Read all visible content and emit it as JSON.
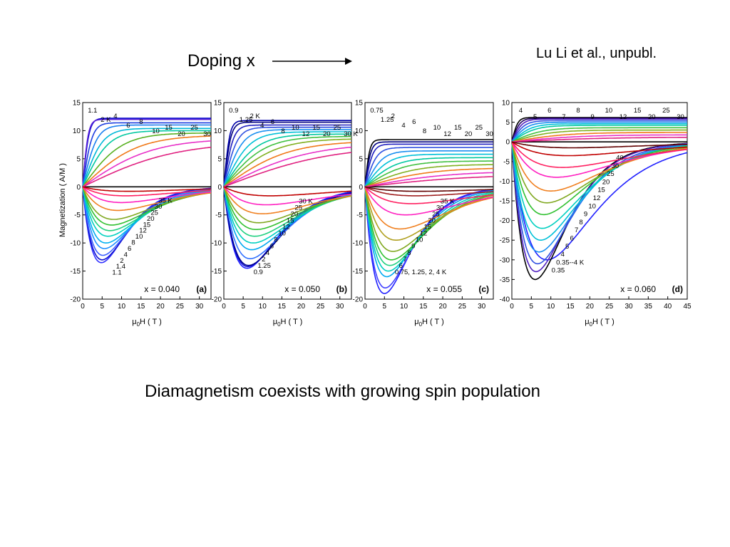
{
  "slide": {
    "doping_label": "Doping x",
    "citation": "Lu Li et al., unpubl.",
    "caption": "Diamagnetism coexists with growing spin population"
  },
  "shared": {
    "ylabel": "Magnetization ( A/M )",
    "xlabel_prefix": "μ",
    "xlabel_sub": "0",
    "xlabel_suffix": "H ( T )"
  },
  "chart_data": [
    {
      "type": "line",
      "panel_label": "(a)",
      "composition": "x = 0.040",
      "xlabel": "μ0H ( T )",
      "ylabel": "Magnetization ( A/M )",
      "xlim": [
        0,
        33
      ],
      "ylim": [
        -20,
        15
      ],
      "xticks": [
        "0",
        "5",
        "10",
        "15",
        "20",
        "25",
        "30"
      ],
      "yticks": [
        "15",
        "10",
        "5",
        "0",
        "-5",
        "-10",
        "-15",
        "-20"
      ],
      "upper_labels": [
        "1.1",
        "2 K",
        "4",
        "6",
        "8",
        "10",
        "15",
        "20",
        "25",
        "30"
      ],
      "lower_labels": [
        "35 K",
        "30",
        "25",
        "20",
        "15",
        "12",
        "10",
        "8",
        "6",
        "4",
        "2",
        "1.4",
        "1.1"
      ],
      "series_upper": [
        {
          "T": "1.1",
          "color": "#0000cc",
          "sat": 12.2,
          "k": 1.6
        },
        {
          "T": "2",
          "color": "#5a20d8",
          "sat": 12.0,
          "k": 1.4
        },
        {
          "T": "4",
          "color": "#1f3fe0",
          "sat": 11.4,
          "k": 2.4
        },
        {
          "T": "6",
          "color": "#1a7ff0",
          "sat": 11.0,
          "k": 3.6
        },
        {
          "T": "8",
          "color": "#00b8d8",
          "sat": 10.4,
          "k": 5.0
        },
        {
          "T": "10",
          "color": "#00c8a0",
          "sat": 10.0,
          "k": 6.6
        },
        {
          "T": "15",
          "color": "#58b020",
          "sat": 9.6,
          "k": 10.0
        },
        {
          "T": "20",
          "color": "#f07818",
          "sat": 9.2,
          "k": 14.0
        },
        {
          "T": "25",
          "color": "#e830c8",
          "sat": 8.6,
          "k": 18.0
        },
        {
          "T": "30",
          "color": "#e02080",
          "sat": 8.0,
          "k": 24.0
        }
      ],
      "series_lower": [
        {
          "T": "1.1",
          "color": "#3030ff",
          "depth": -13.5,
          "hmin": 4.8
        },
        {
          "T": "1.4",
          "color": "#1010d0",
          "depth": -13.0,
          "hmin": 5.0
        },
        {
          "T": "2",
          "color": "#4060ff",
          "depth": -12.2,
          "hmin": 5.2
        },
        {
          "T": "4",
          "color": "#2090ff",
          "depth": -11.0,
          "hmin": 5.6
        },
        {
          "T": "6",
          "color": "#00b0f0",
          "depth": -10.0,
          "hmin": 6.0
        },
        {
          "T": "8",
          "color": "#00d0c0",
          "depth": -8.8,
          "hmin": 6.5
        },
        {
          "T": "10",
          "color": "#20d080",
          "depth": -7.8,
          "hmin": 7.0
        },
        {
          "T": "12",
          "color": "#30c030",
          "depth": -6.8,
          "hmin": 7.5
        },
        {
          "T": "15",
          "color": "#80a820",
          "depth": -5.8,
          "hmin": 8.0
        },
        {
          "T": "20",
          "color": "#f08020",
          "depth": -4.2,
          "hmin": 9.0
        },
        {
          "T": "25",
          "color": "#ff20c0",
          "depth": -2.8,
          "hmin": 10.0
        },
        {
          "T": "30",
          "color": "#ff2060",
          "depth": -1.6,
          "hmin": 11.0
        },
        {
          "T": "35",
          "color": "#c00000",
          "depth": -0.8,
          "hmin": 12.0
        }
      ]
    },
    {
      "type": "line",
      "panel_label": "(b)",
      "composition": "x = 0.050",
      "xlabel": "μ0H ( T )",
      "ylabel": "",
      "xlim": [
        0,
        33
      ],
      "ylim": [
        -20,
        15
      ],
      "xticks": [
        "0",
        "5",
        "10",
        "15",
        "20",
        "25",
        "30"
      ],
      "yticks": [
        "15",
        "10",
        "5",
        "0",
        "-5",
        "-10",
        "-15",
        "-20"
      ],
      "upper_labels": [
        "0.9",
        "1.25",
        "2 K",
        "4",
        "6",
        "8",
        "10",
        "12",
        "15",
        "20",
        "25",
        "30 K"
      ],
      "lower_labels": [
        "30 K",
        "25",
        "20",
        "15",
        "12",
        "10",
        "8",
        "6",
        "4",
        "2",
        "1.25",
        "0.9"
      ],
      "series_upper": [
        {
          "T": "0.9",
          "color": "#0000aa",
          "sat": 11.8,
          "k": 1.5
        },
        {
          "T": "1.25",
          "color": "#000080",
          "sat": 11.5,
          "k": 1.8
        },
        {
          "T": "2",
          "color": "#2020c0",
          "sat": 11.0,
          "k": 2.4
        },
        {
          "T": "4",
          "color": "#3050e0",
          "sat": 10.6,
          "k": 3.4
        },
        {
          "T": "6",
          "color": "#1a8ff0",
          "sat": 10.2,
          "k": 4.8
        },
        {
          "T": "8",
          "color": "#00c0d8",
          "sat": 9.8,
          "k": 6.6
        },
        {
          "T": "10",
          "color": "#00c8a0",
          "sat": 9.4,
          "k": 8.6
        },
        {
          "T": "12",
          "color": "#40c040",
          "sat": 9.0,
          "k": 10.6
        },
        {
          "T": "15",
          "color": "#80b020",
          "sat": 8.6,
          "k": 13.0
        },
        {
          "T": "20",
          "color": "#f07818",
          "sat": 8.2,
          "k": 17.0
        },
        {
          "T": "25",
          "color": "#e830c8",
          "sat": 7.8,
          "k": 22.0
        },
        {
          "T": "30",
          "color": "#e02080",
          "sat": 7.4,
          "k": 28.0
        }
      ],
      "series_lower": [
        {
          "T": "0.9",
          "color": "#2020ff",
          "depth": -14.5,
          "hmin": 6.0
        },
        {
          "T": "1.25",
          "color": "#1010d0",
          "depth": -14.2,
          "hmin": 6.2
        },
        {
          "T": "2",
          "color": "#000090",
          "depth": -14.0,
          "hmin": 6.4
        },
        {
          "T": "4",
          "color": "#3070ff",
          "depth": -12.8,
          "hmin": 6.8
        },
        {
          "T": "6",
          "color": "#00a8f0",
          "depth": -11.2,
          "hmin": 7.2
        },
        {
          "T": "8",
          "color": "#00d0c0",
          "depth": -10.0,
          "hmin": 7.6
        },
        {
          "T": "10",
          "color": "#20d080",
          "depth": -8.8,
          "hmin": 8.0
        },
        {
          "T": "12",
          "color": "#30c030",
          "depth": -7.6,
          "hmin": 8.4
        },
        {
          "T": "15",
          "color": "#80a820",
          "depth": -6.4,
          "hmin": 9.0
        },
        {
          "T": "20",
          "color": "#f08020",
          "depth": -4.8,
          "hmin": 10.0
        },
        {
          "T": "25",
          "color": "#ff20c0",
          "depth": -3.2,
          "hmin": 11.0
        },
        {
          "T": "30",
          "color": "#c00000",
          "depth": -1.6,
          "hmin": 12.0
        }
      ]
    },
    {
      "type": "line",
      "panel_label": "(c)",
      "composition": "x = 0.055",
      "xlabel": "μ0H ( T )",
      "ylabel": "",
      "xlim": [
        0,
        33
      ],
      "ylim": [
        -20,
        15
      ],
      "xticks": [
        "0",
        "5",
        "10",
        "15",
        "20",
        "25",
        "30"
      ],
      "yticks": [
        "15",
        "10",
        "5",
        "0",
        "-5",
        "-10",
        "-15",
        "-20"
      ],
      "upper_labels": [
        "0.75",
        "1.25",
        "2",
        "4",
        "6",
        "8",
        "10",
        "12",
        "15",
        "20",
        "25",
        "30"
      ],
      "lower_labels": [
        "35 K",
        "30",
        "25",
        "20",
        "15",
        "12",
        "10",
        "9",
        "8",
        "7",
        "6",
        "0.75, 1.25, 2, 4 K"
      ],
      "series_upper": [
        {
          "T": "0.75",
          "color": "#000000",
          "sat": 8.4,
          "k": 1.2
        },
        {
          "T": "1.25",
          "color": "#000080",
          "sat": 8.0,
          "k": 1.5
        },
        {
          "T": "2",
          "color": "#2020c0",
          "sat": 7.6,
          "k": 2.0
        },
        {
          "T": "4",
          "color": "#3050e0",
          "sat": 7.0,
          "k": 3.0
        },
        {
          "T": "6",
          "color": "#1a8ff0",
          "sat": 6.4,
          "k": 4.4
        },
        {
          "T": "8",
          "color": "#00c0d8",
          "sat": 5.8,
          "k": 6.0
        },
        {
          "T": "10",
          "color": "#00c8a0",
          "sat": 5.2,
          "k": 8.0
        },
        {
          "T": "12",
          "color": "#40c040",
          "sat": 4.6,
          "k": 10.0
        },
        {
          "T": "15",
          "color": "#80b020",
          "sat": 4.0,
          "k": 13.0
        },
        {
          "T": "20",
          "color": "#f07818",
          "sat": 3.4,
          "k": 17.0
        },
        {
          "T": "25",
          "color": "#e830c8",
          "sat": 2.8,
          "k": 22.0
        },
        {
          "T": "30",
          "color": "#e02080",
          "sat": 2.2,
          "k": 28.0
        }
      ],
      "series_lower": [
        {
          "T": "0.75",
          "color": "#2020ff",
          "depth": -19.0,
          "hmin": 5.0
        },
        {
          "T": "4",
          "color": "#4040ff",
          "depth": -18.0,
          "hmin": 5.2
        },
        {
          "T": "6",
          "color": "#00a8f0",
          "depth": -16.0,
          "hmin": 5.6
        },
        {
          "T": "7",
          "color": "#00d0c0",
          "depth": -15.0,
          "hmin": 6.0
        },
        {
          "T": "8",
          "color": "#20d080",
          "depth": -14.0,
          "hmin": 6.4
        },
        {
          "T": "9",
          "color": "#30c030",
          "depth": -13.0,
          "hmin": 6.8
        },
        {
          "T": "10",
          "color": "#80a820",
          "depth": -11.5,
          "hmin": 7.2
        },
        {
          "T": "12",
          "color": "#b0a020",
          "depth": -9.5,
          "hmin": 8.0
        },
        {
          "T": "15",
          "color": "#f08020",
          "depth": -7.5,
          "hmin": 9.0
        },
        {
          "T": "20",
          "color": "#ff20c0",
          "depth": -5.0,
          "hmin": 10.5
        },
        {
          "T": "25",
          "color": "#ff2060",
          "depth": -3.0,
          "hmin": 12.0
        },
        {
          "T": "30",
          "color": "#a02020",
          "depth": -1.6,
          "hmin": 13.0
        },
        {
          "T": "35",
          "color": "#600000",
          "depth": -0.8,
          "hmin": 14.0
        }
      ]
    },
    {
      "type": "line",
      "panel_label": "(d)",
      "composition": "x = 0.060",
      "xlabel": "μ0H ( T )",
      "ylabel": "",
      "xlim": [
        0,
        45
      ],
      "ylim": [
        -40,
        10
      ],
      "xticks": [
        "0",
        "5",
        "10",
        "15",
        "20",
        "25",
        "30",
        "35",
        "40",
        "45"
      ],
      "yticks": [
        "10",
        "5",
        "0",
        "-5",
        "-10",
        "-15",
        "-20",
        "-25",
        "-30",
        "-35",
        "-40"
      ],
      "upper_labels": [
        "4",
        "5",
        "6",
        "7",
        "8",
        "9",
        "10",
        "12",
        "15",
        "20",
        "25",
        "30"
      ],
      "lower_labels": [
        "40",
        "30",
        "25",
        "20",
        "15",
        "12",
        "10",
        "9",
        "8",
        "7",
        "6",
        "5",
        "4",
        "0.35--4 K",
        "0.35"
      ],
      "series_upper": [
        {
          "T": "4",
          "color": "#000000",
          "sat": 6.2,
          "k": 1.5
        },
        {
          "T": "5",
          "color": "#200060",
          "sat": 6.0,
          "k": 2.0
        },
        {
          "T": "6",
          "color": "#5020c0",
          "sat": 5.8,
          "k": 2.6
        },
        {
          "T": "7",
          "color": "#3050e0",
          "sat": 5.4,
          "k": 3.2
        },
        {
          "T": "8",
          "color": "#1a8ff0",
          "sat": 5.0,
          "k": 4.0
        },
        {
          "T": "9",
          "color": "#00c0d8",
          "sat": 4.6,
          "k": 5.0
        },
        {
          "T": "10",
          "color": "#00c8a0",
          "sat": 4.2,
          "k": 6.0
        },
        {
          "T": "12",
          "color": "#40c040",
          "sat": 3.6,
          "k": 8.0
        },
        {
          "T": "15",
          "color": "#80b020",
          "sat": 3.0,
          "k": 10.0
        },
        {
          "T": "20",
          "color": "#f07818",
          "sat": 2.4,
          "k": 14.0
        },
        {
          "T": "25",
          "color": "#e830c8",
          "sat": 1.8,
          "k": 18.0
        },
        {
          "T": "30",
          "color": "#e02080",
          "sat": 1.2,
          "k": 24.0
        }
      ],
      "series_lower": [
        {
          "T": "0.35",
          "color": "#2020ff",
          "depth": -30.0,
          "hmin": 9.0
        },
        {
          "T": "4",
          "color": "#000000",
          "depth": -35.0,
          "hmin": 6.0
        },
        {
          "T": "5",
          "color": "#5020c0",
          "depth": -33.0,
          "hmin": 6.2
        },
        {
          "T": "6",
          "color": "#3050e0",
          "depth": -31.0,
          "hmin": 6.6
        },
        {
          "T": "7",
          "color": "#1a8ff0",
          "depth": -28.0,
          "hmin": 7.0
        },
        {
          "T": "8",
          "color": "#00c0d8",
          "depth": -25.0,
          "hmin": 7.4
        },
        {
          "T": "9",
          "color": "#00d0c0",
          "depth": -22.0,
          "hmin": 7.8
        },
        {
          "T": "10",
          "color": "#30c030",
          "depth": -18.5,
          "hmin": 8.2
        },
        {
          "T": "12",
          "color": "#80a820",
          "depth": -15.5,
          "hmin": 9.0
        },
        {
          "T": "15",
          "color": "#f08020",
          "depth": -12.5,
          "hmin": 10.0
        },
        {
          "T": "20",
          "color": "#ff20c0",
          "depth": -9.0,
          "hmin": 11.5
        },
        {
          "T": "25",
          "color": "#ff2060",
          "depth": -6.5,
          "hmin": 13.0
        },
        {
          "T": "30",
          "color": "#c00000",
          "depth": -3.5,
          "hmin": 14.5
        },
        {
          "T": "40",
          "color": "#600000",
          "depth": -1.5,
          "hmin": 15.5
        }
      ]
    }
  ]
}
